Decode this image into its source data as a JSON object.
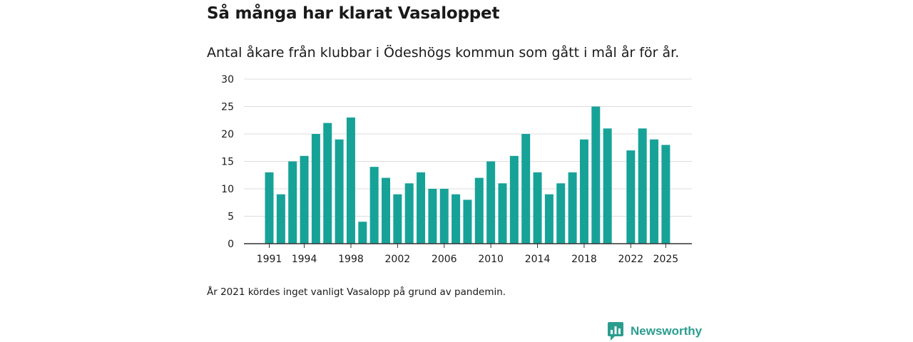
{
  "header": {
    "title": "Så många har klarat Vasaloppet",
    "subtitle": "Antal åkare från klubbar i Ödeshögs kommun som gått i mål år för år."
  },
  "footer": {
    "note": "År 2021 kördes inget vanligt Vasalopp på grund av pandemin.",
    "brand": "Newsworthy"
  },
  "colors": {
    "bar": "#17a298",
    "grid": "#dddddd",
    "axis": "#333333",
    "brand": "#2a9d8f"
  },
  "chart_data": {
    "type": "bar",
    "title": "Så många har klarat Vasaloppet",
    "subtitle": "Antal åkare från klubbar i Ödeshögs kommun som gått i mål år för år.",
    "xlabel": "",
    "ylabel": "",
    "ylim": [
      0,
      30
    ],
    "yticks": [
      0,
      5,
      10,
      15,
      20,
      25,
      30
    ],
    "xticks": [
      1991,
      1994,
      1998,
      2002,
      2006,
      2010,
      2014,
      2018,
      2022,
      2025
    ],
    "grid": true,
    "series": [
      {
        "name": "Antal åkare",
        "x": [
          1991,
          1992,
          1993,
          1994,
          1995,
          1996,
          1997,
          1998,
          1999,
          2000,
          2001,
          2002,
          2003,
          2004,
          2005,
          2006,
          2007,
          2008,
          2009,
          2010,
          2011,
          2012,
          2013,
          2014,
          2015,
          2016,
          2017,
          2018,
          2019,
          2020,
          2021,
          2022,
          2023,
          2024,
          2025
        ],
        "values": [
          13,
          9,
          15,
          16,
          20,
          22,
          19,
          23,
          4,
          14,
          12,
          9,
          11,
          13,
          10,
          10,
          9,
          8,
          12,
          15,
          11,
          16,
          20,
          13,
          9,
          11,
          13,
          19,
          25,
          21,
          null,
          17,
          21,
          19,
          18
        ]
      }
    ]
  }
}
